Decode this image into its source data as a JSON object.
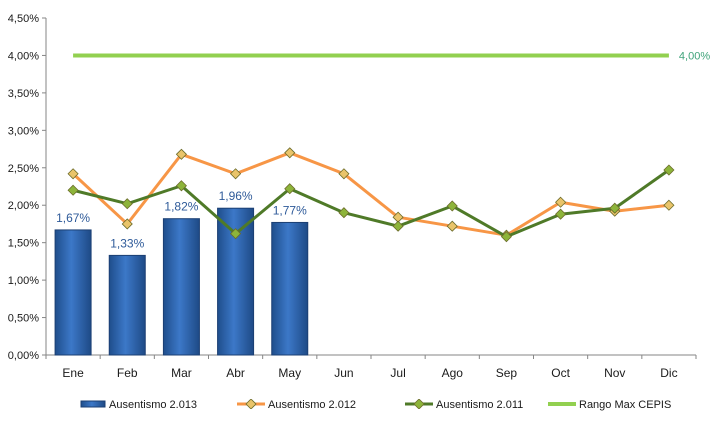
{
  "chart_data": {
    "type": "bar",
    "categories": [
      "Ene",
      "Feb",
      "Mar",
      "Abr",
      "May",
      "Jun",
      "Jul",
      "Ago",
      "Sep",
      "Oct",
      "Nov",
      "Dic"
    ],
    "ylim": [
      0,
      4.5
    ],
    "yticks": [
      "0,00%",
      "0,50%",
      "1,00%",
      "1,50%",
      "2,00%",
      "2,50%",
      "3,00%",
      "3,50%",
      "4,00%",
      "4,50%"
    ],
    "grid": false,
    "legend_position": "bottom",
    "series": [
      {
        "name": "Ausentismo 2.013",
        "type": "bar",
        "color": "#2E64B0",
        "values": [
          1.67,
          1.33,
          1.82,
          1.96,
          1.77,
          null,
          null,
          null,
          null,
          null,
          null,
          null
        ],
        "labels": [
          "1,67%",
          "1,33%",
          "1,82%",
          "1,96%",
          "1,77%"
        ]
      },
      {
        "name": "Ausentismo 2.012",
        "type": "line",
        "color": "#F79646",
        "marker_color": "#E9C46A",
        "values": [
          2.42,
          1.75,
          2.68,
          2.42,
          2.7,
          2.42,
          1.84,
          1.72,
          1.6,
          2.04,
          1.92,
          2.0
        ]
      },
      {
        "name": "Ausentismo 2.011",
        "type": "line",
        "color": "#4F7A28",
        "marker_color": "#8DB43A",
        "values": [
          2.2,
          2.02,
          2.26,
          1.62,
          2.22,
          1.9,
          1.72,
          1.99,
          1.58,
          1.88,
          1.96,
          2.47
        ]
      },
      {
        "name": "Rango Max CEPIS",
        "type": "line",
        "color": "#92D050",
        "values": [
          4.0,
          4.0,
          4.0,
          4.0,
          4.0,
          4.0,
          4.0,
          4.0,
          4.0,
          4.0,
          4.0,
          4.0
        ],
        "end_label": "4,00%"
      }
    ]
  }
}
